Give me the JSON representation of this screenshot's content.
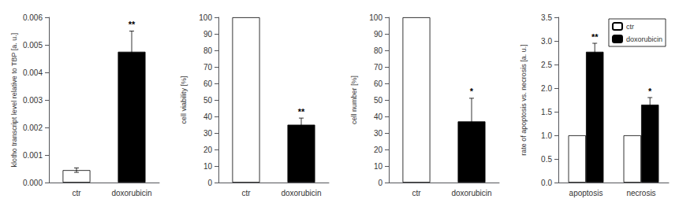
{
  "chart_data": [
    {
      "type": "bar",
      "categories": [
        "ctr",
        "doxorubicin"
      ],
      "values": [
        0.00045,
        0.00475
      ],
      "errors": [
        8e-05,
        0.00075
      ],
      "colors": [
        "white",
        "black"
      ],
      "ylabel": "klotho transcript level relative to TBP [a. u.]",
      "ylim": [
        0,
        0.006
      ],
      "yticks": [
        {
          "value": 0,
          "label": "0.000"
        },
        0.001,
        0.002,
        0.003,
        0.004,
        0.005,
        0.006
      ],
      "annotations": [
        {
          "x": "doxorubicin",
          "text": "**"
        }
      ],
      "grid": false
    },
    {
      "type": "bar",
      "categories": [
        "ctr",
        "doxorubicin"
      ],
      "values": [
        100,
        35
      ],
      "errors": [
        0,
        4
      ],
      "colors": [
        "white",
        "black"
      ],
      "ylabel": "cell viability [%]",
      "ylim": [
        0,
        100
      ],
      "yticks": [
        0,
        10,
        20,
        30,
        40,
        50,
        60,
        70,
        80,
        90,
        100
      ],
      "annotations": [
        {
          "x": "doxorubicin",
          "text": "**"
        }
      ],
      "grid": false
    },
    {
      "type": "bar",
      "categories": [
        "ctr",
        "doxorubicin"
      ],
      "values": [
        100,
        37
      ],
      "errors": [
        0,
        14
      ],
      "colors": [
        "white",
        "black"
      ],
      "ylabel": "cell number [%]",
      "ylim": [
        0,
        100
      ],
      "yticks": [
        0,
        10,
        20,
        30,
        40,
        50,
        60,
        70,
        80,
        90,
        100
      ],
      "annotations": [
        {
          "x": "doxorubicin",
          "text": "*"
        }
      ],
      "grid": false
    },
    {
      "type": "bar",
      "categories": [
        "apoptosis",
        "necrosis"
      ],
      "series": [
        {
          "name": "ctr",
          "color": "white",
          "values": [
            1.0,
            1.0
          ]
        },
        {
          "name": "doxorubicin",
          "color": "black",
          "values": [
            2.77,
            1.65
          ],
          "errors": [
            0.18,
            0.15
          ]
        }
      ],
      "ylabel": "rate of apoptosis vs. necrosis [a. u.]",
      "ylim": [
        0,
        3.5
      ],
      "yticks": [
        {
          "value": 0,
          "label": "0.0"
        },
        0.5,
        {
          "value": 1,
          "label": "1.0"
        },
        1.5,
        {
          "value": 2,
          "label": "2.0"
        },
        2.5,
        {
          "value": 3,
          "label": "3.0"
        },
        3.5
      ],
      "annotations": [
        {
          "x": "apoptosis",
          "series": "doxorubicin",
          "text": "**"
        },
        {
          "x": "necrosis",
          "series": "doxorubicin",
          "text": "*"
        }
      ],
      "legend": "upper right",
      "grid": false
    }
  ]
}
